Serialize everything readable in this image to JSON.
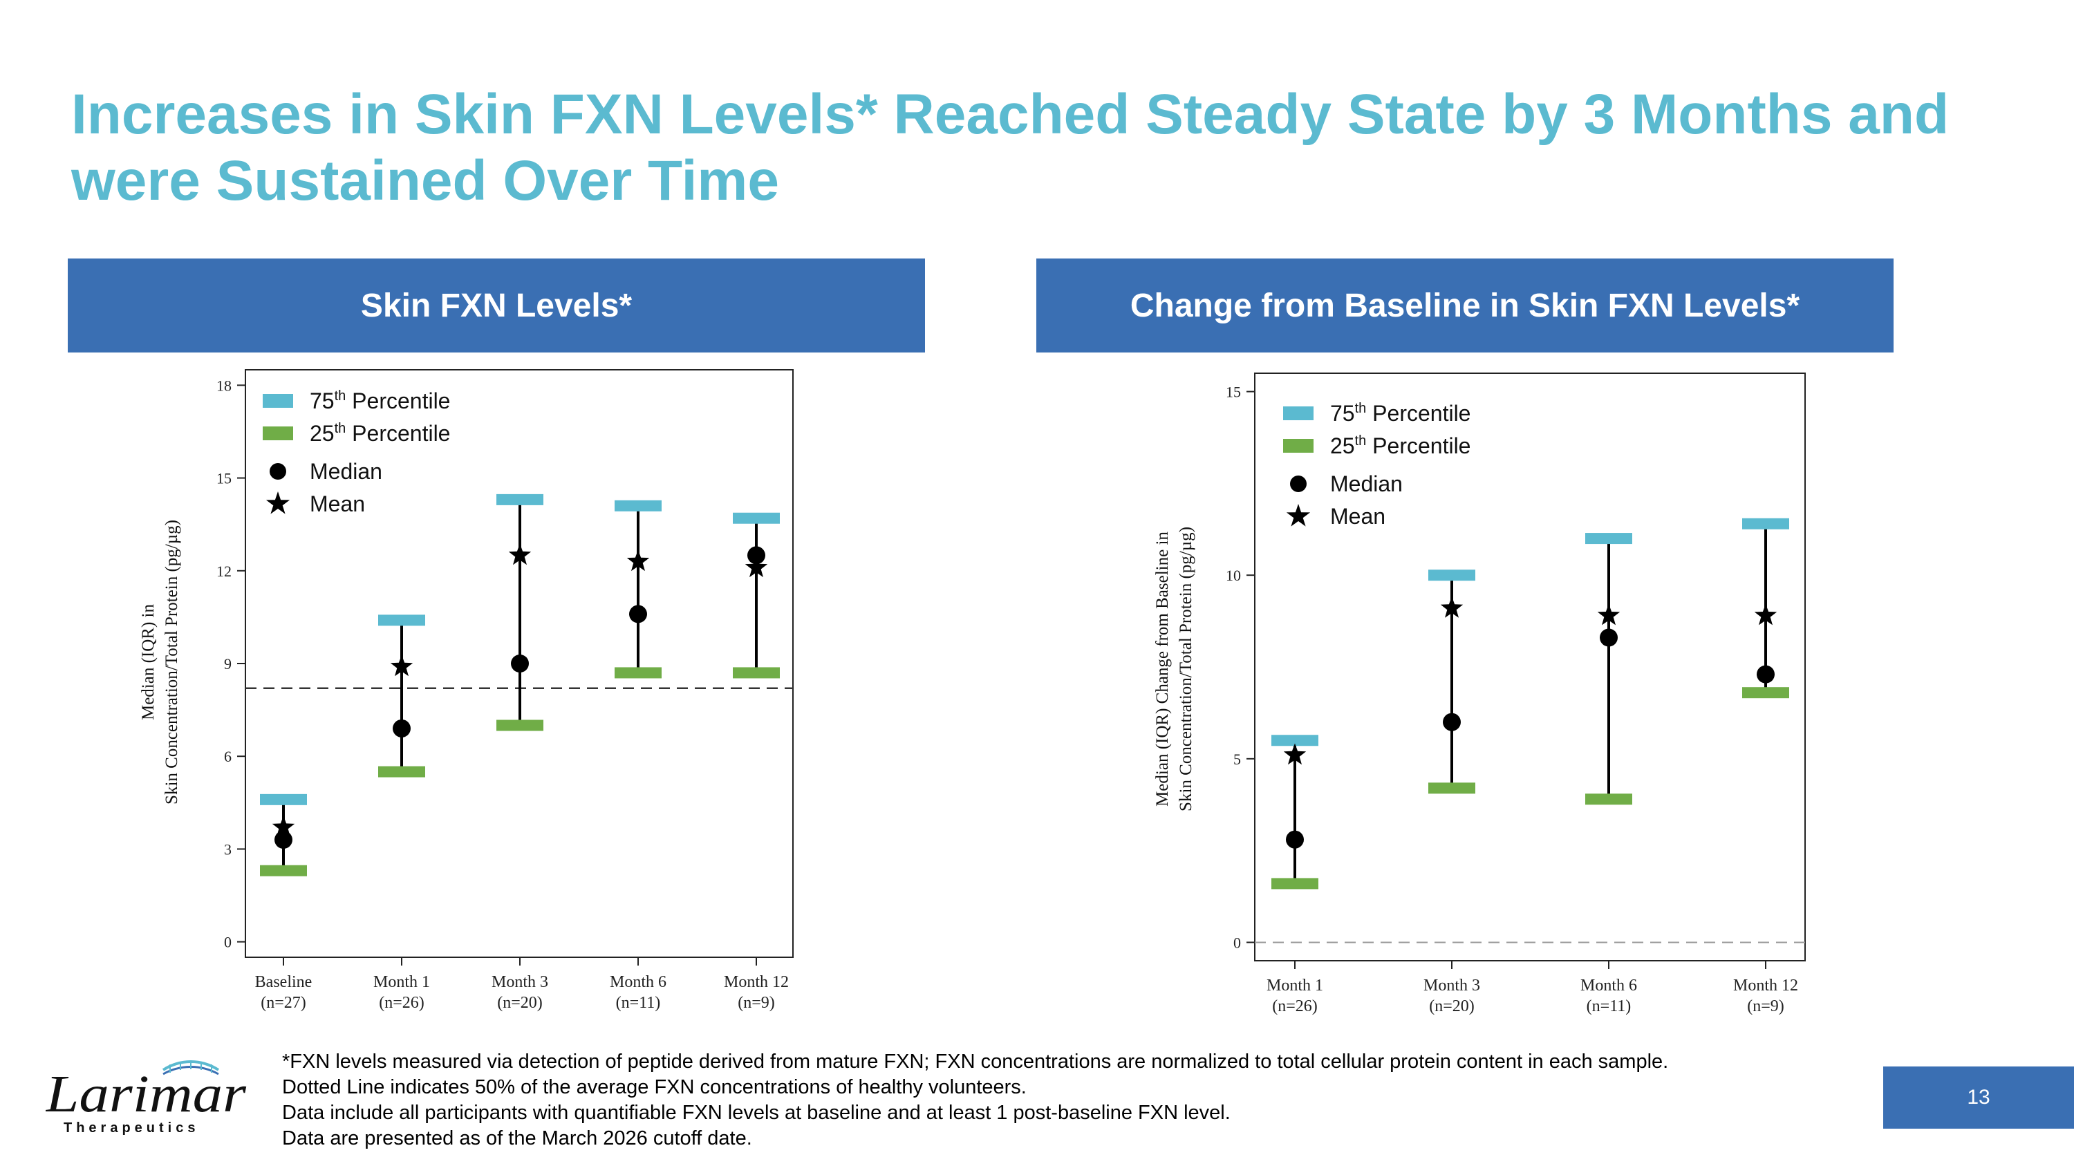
{
  "slide": {
    "title": "Increases in Skin FXN Levels* Reached Steady State by 3 Months and were Sustained Over Time",
    "page_number": "13",
    "logo": {
      "name": "Larimar",
      "subtitle": "Therapeutics"
    },
    "footnotes": [
      "*FXN levels measured via detection of peptide derived from mature FXN; FXN concentrations are normalized to total cellular protein content in each sample.",
      "Dotted Line indicates 50% of the average FXN concentrations of healthy volunteers.",
      "Data include all participants with quantifiable FXN levels at baseline and at least 1 post-baseline FXN level.",
      "Data are presented as of the March 2026 cutoff date."
    ],
    "colors": {
      "title": "#5bbad0",
      "header_bg": "#3a6fb3",
      "p75": "#5bbad0",
      "p25": "#70ad47",
      "marker": "#000000"
    }
  },
  "legend": {
    "p75": "75",
    "p25": "25",
    "sup": "th",
    "percentile": " Percentile",
    "median": "Median",
    "mean": "Mean"
  },
  "chart_data": [
    {
      "type": "scatter",
      "header": "Skin FXN Levels*",
      "ylabel_lines": [
        "Median (IQR) in",
        "Skin Concentration/Total Protein (pg/µg)"
      ],
      "categories": [
        "Baseline",
        "Month 1",
        "Month 3",
        "Month 6",
        "Month 12"
      ],
      "n_labels": [
        "(n=27)",
        "(n=26)",
        "(n=20)",
        "(n=11)",
        "(n=9)"
      ],
      "ylim": [
        -0.5,
        18.5
      ],
      "yticks": [
        0,
        3,
        6,
        9,
        12,
        15,
        18
      ],
      "p75": [
        4.6,
        10.4,
        14.3,
        14.1,
        13.7
      ],
      "p25": [
        2.3,
        5.5,
        7.0,
        8.7,
        8.7
      ],
      "median": [
        3.3,
        6.9,
        9.0,
        10.6,
        12.5
      ],
      "mean": [
        3.7,
        8.9,
        12.5,
        12.3,
        12.1
      ],
      "reference_line": 8.2,
      "reference_style": "black dashed",
      "legend_position": "top-left"
    },
    {
      "type": "scatter",
      "header": "Change from Baseline in Skin FXN Levels*",
      "ylabel_lines": [
        "Median (IQR) Change from Baseline in",
        "Skin Concentration/Total Protein (pg/µg)"
      ],
      "categories": [
        "Month 1",
        "Month 3",
        "Month 6",
        "Month 12"
      ],
      "n_labels": [
        "(n=26)",
        "(n=20)",
        "(n=11)",
        "(n=9)"
      ],
      "ylim": [
        -0.5,
        15.5
      ],
      "yticks": [
        0,
        5,
        10,
        15
      ],
      "p75": [
        5.5,
        10.0,
        11.0,
        11.4
      ],
      "p25": [
        1.6,
        4.2,
        3.9,
        6.8
      ],
      "median": [
        2.8,
        6.0,
        8.3,
        7.3
      ],
      "mean": [
        5.1,
        9.1,
        8.9,
        8.9
      ],
      "reference_line": 0,
      "reference_style": "gray dashed",
      "legend_position": "top-left"
    }
  ]
}
